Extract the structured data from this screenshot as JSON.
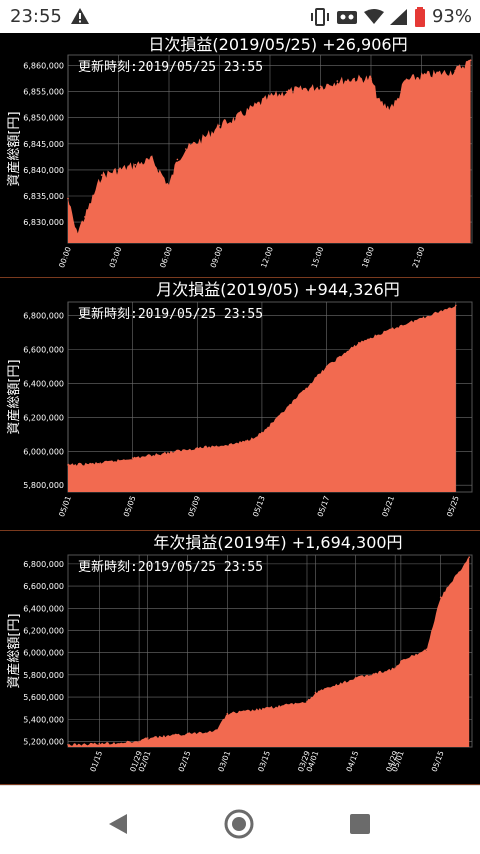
{
  "status_bar": {
    "time": "23:55",
    "battery": "93%",
    "icons": [
      "warning-icon",
      "vibrate-icon",
      "robot-icon",
      "wifi-icon",
      "signal-icon",
      "battery-icon"
    ]
  },
  "colors": {
    "fill": "#f26a50",
    "background": "#000000",
    "text": "#ffffff",
    "grid": "#6e6e6e"
  },
  "charts": [
    {
      "title": "日次損益(2019/05/25) +26,906円",
      "updated": "更新時刻:2019/05/25 23:55",
      "ylabel": "資産総額[円]",
      "yticks": [
        "6,830,000",
        "6,835,000",
        "6,840,000",
        "6,845,000",
        "6,850,000",
        "6,855,000",
        "6,860,000"
      ],
      "xticks": [
        "00:00",
        "03:00",
        "06:00",
        "09:00",
        "12:00",
        "15:00",
        "18:00",
        "21:00"
      ]
    },
    {
      "title": "月次損益(2019/05) +944,326円",
      "updated": "更新時刻:2019/05/25 23:55",
      "ylabel": "資産総額[円]",
      "yticks": [
        "5,800,000",
        "6,000,000",
        "6,200,000",
        "6,400,000",
        "6,600,000",
        "6,800,000"
      ],
      "xticks": [
        "05/01",
        "05/05",
        "05/09",
        "05/13",
        "05/17",
        "05/21",
        "05/25"
      ]
    },
    {
      "title": "年次損益(2019年) +1,694,300円",
      "updated": "更新時刻:2019/05/25 23:55",
      "ylabel": "資産総額[円]",
      "yticks": [
        "5,200,000",
        "5,400,000",
        "5,600,000",
        "5,800,000",
        "6,000,000",
        "6,200,000",
        "6,400,000",
        "6,600,000",
        "6,800,000"
      ],
      "xticks": [
        "01/15",
        "01/29",
        "02/01",
        "02/15",
        "03/01",
        "03/15",
        "03/29",
        "04/01",
        "04/15",
        "04/29",
        "05/01",
        "05/15"
      ]
    }
  ],
  "chart_data": [
    {
      "type": "area",
      "title": "日次損益(2019/05/25) +26,906円",
      "ylabel": "資産総額[円]",
      "x": [
        "00:00",
        "00:30",
        "01:00",
        "02:00",
        "03:00",
        "04:00",
        "05:00",
        "06:00",
        "06:30",
        "07:00",
        "08:00",
        "09:00",
        "10:00",
        "11:00",
        "12:00",
        "13:00",
        "14:00",
        "15:00",
        "16:00",
        "17:00",
        "18:00",
        "18:30",
        "19:00",
        "19:30",
        "20:00",
        "21:00",
        "22:00",
        "23:00",
        "23:55"
      ],
      "values": [
        6834500,
        6828000,
        6831000,
        6839000,
        6840000,
        6841000,
        6842000,
        6837000,
        6842000,
        6844000,
        6846000,
        6848500,
        6850000,
        6852000,
        6854000,
        6855000,
        6855500,
        6856000,
        6857000,
        6857500,
        6857500,
        6853000,
        6852000,
        6853000,
        6857000,
        6858000,
        6858500,
        6859000,
        6861000
      ],
      "ylim": [
        6826000,
        6862000
      ]
    },
    {
      "type": "area",
      "title": "月次損益(2019/05) +944,326円",
      "ylabel": "資産総額[円]",
      "x": [
        "05/01",
        "05/03",
        "05/05",
        "05/07",
        "05/09",
        "05/11",
        "05/12",
        "05/13",
        "05/14",
        "05/15",
        "05/17",
        "05/19",
        "05/21",
        "05/23",
        "05/25"
      ],
      "values": [
        5920000,
        5930000,
        5960000,
        5990000,
        6020000,
        6040000,
        6060000,
        6110000,
        6200000,
        6300000,
        6500000,
        6640000,
        6720000,
        6790000,
        6860000
      ],
      "ylim": [
        5760000,
        6880000
      ]
    },
    {
      "type": "area",
      "title": "年次損益(2019年) +1,694,300円",
      "ylabel": "資産総額[円]",
      "x": [
        "01/04",
        "01/15",
        "01/29",
        "02/01",
        "02/15",
        "02/25",
        "03/01",
        "03/15",
        "03/29",
        "04/01",
        "04/15",
        "04/29",
        "05/01",
        "05/10",
        "05/15",
        "05/25"
      ],
      "values": [
        5170000,
        5180000,
        5200000,
        5230000,
        5270000,
        5300000,
        5450000,
        5500000,
        5560000,
        5640000,
        5770000,
        5860000,
        5920000,
        6030000,
        6500000,
        6860000
      ],
      "ylim": [
        5150000,
        6880000
      ]
    }
  ],
  "nav": {
    "back": "back-icon",
    "home": "home-icon",
    "recents": "recents-icon"
  }
}
